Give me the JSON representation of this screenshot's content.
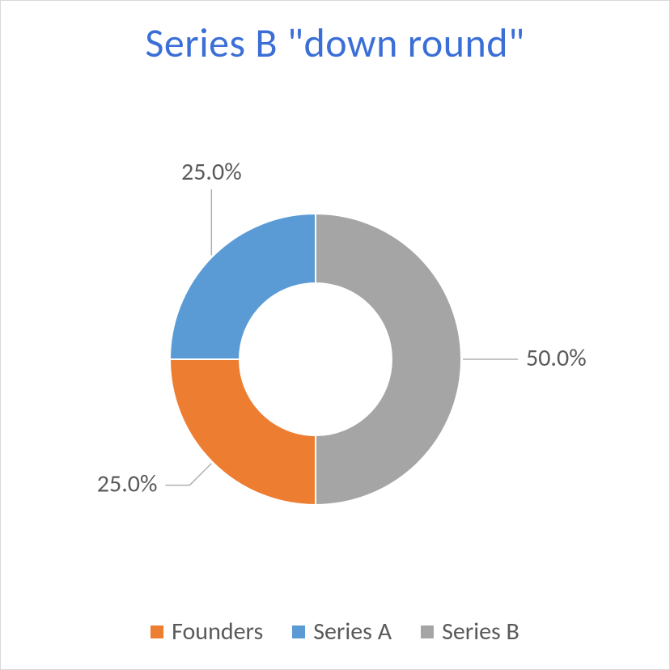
{
  "chart": {
    "type": "donut",
    "title": "Series B \"down round\"",
    "title_color": "#3b6fd6",
    "title_fontsize": 50,
    "background_color": "#ffffff",
    "border_color": "#d9d9d9",
    "label_fontsize": 30,
    "label_color": "#595959",
    "legend_fontsize": 30,
    "legend_color": "#595959",
    "leader_color": "#b0b0b0",
    "donut": {
      "outer_radius": 180,
      "inner_radius": 94,
      "gap_color": "#ffffff",
      "gap_width": 2
    },
    "slices": [
      {
        "name": "Series B",
        "value": 50.0,
        "label": "50.0%",
        "color": "#a5a5a5"
      },
      {
        "name": "Founders",
        "value": 25.0,
        "label": "25.0%",
        "color": "#ed7d31"
      },
      {
        "name": "Series A",
        "value": 25.0,
        "label": "25.0%",
        "color": "#5b9bd5"
      }
    ],
    "legend_order": [
      "Founders",
      "Series A",
      "Series B"
    ]
  }
}
